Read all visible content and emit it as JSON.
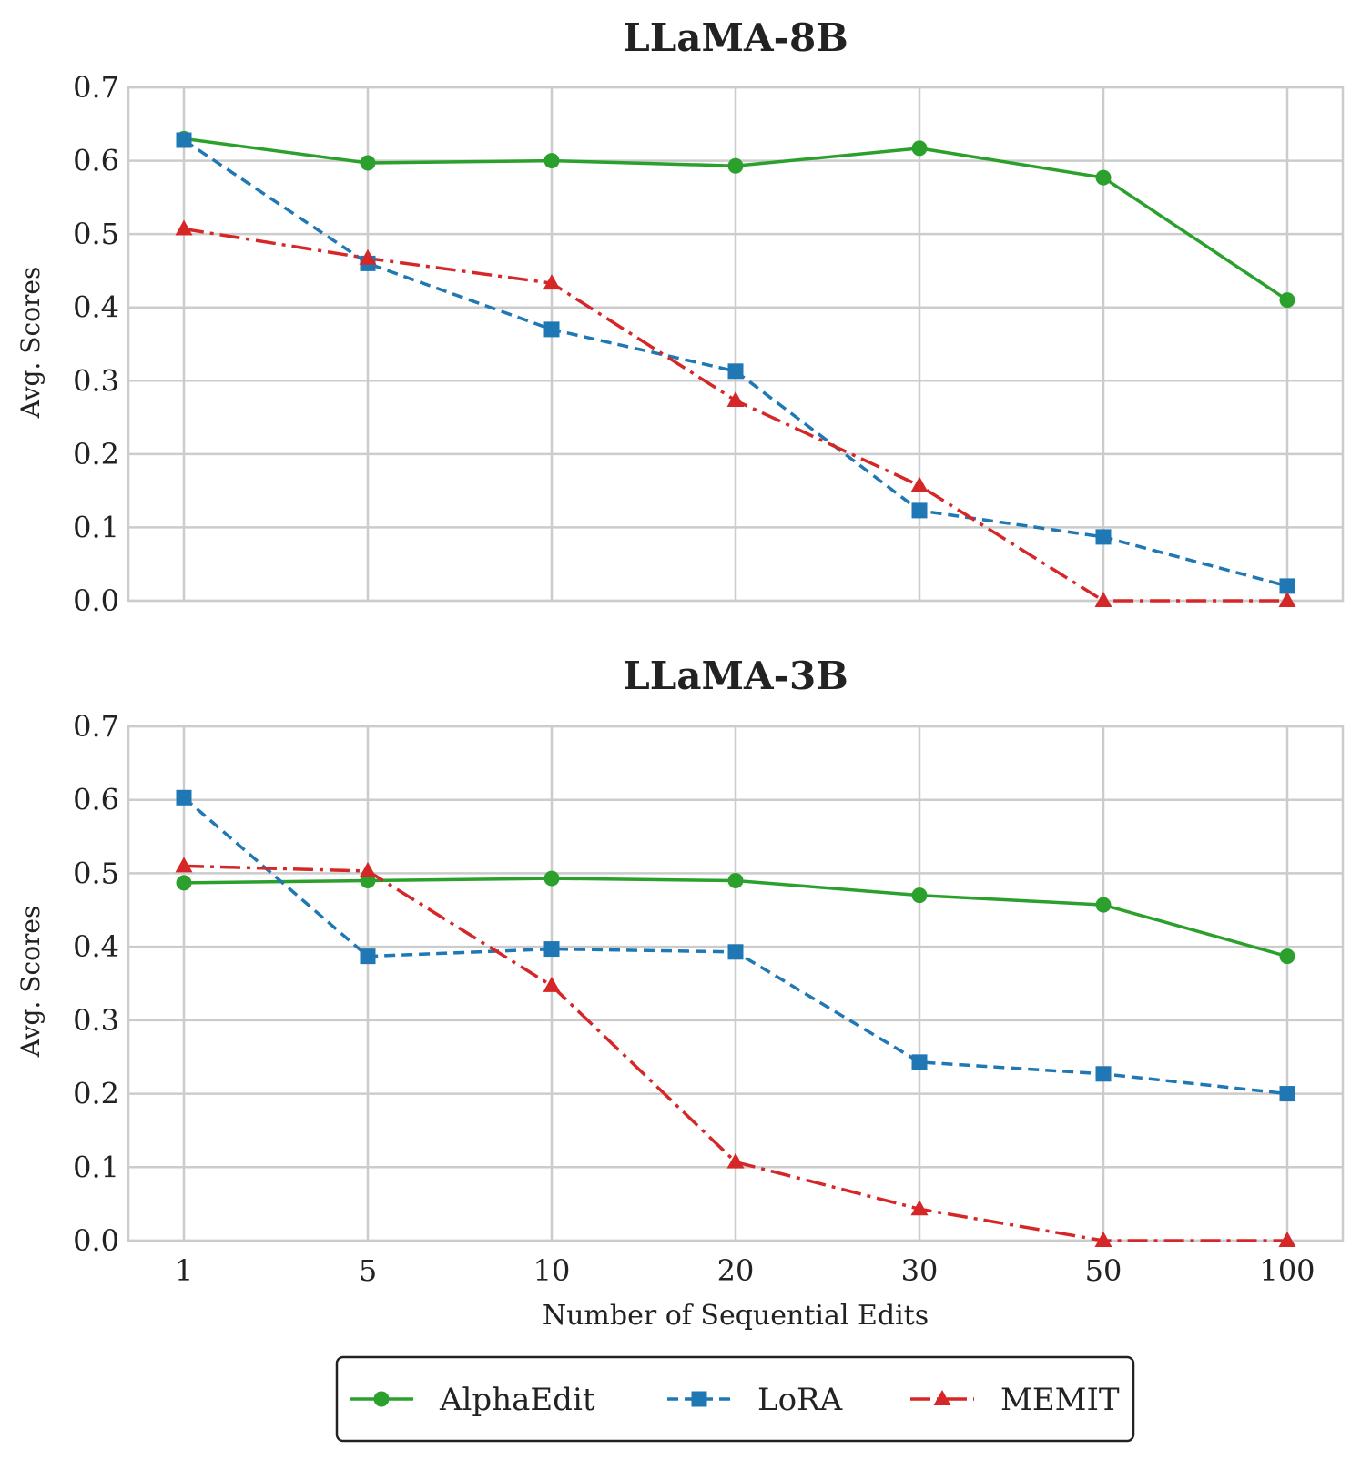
{
  "chart_data": [
    {
      "type": "line",
      "title": "LLaMA-8B",
      "xlabel": "",
      "ylabel": "Avg. Scores",
      "categories": [
        "1",
        "5",
        "10",
        "20",
        "30",
        "50",
        "100"
      ],
      "ylim": [
        0,
        0.7
      ],
      "yticks": [
        "0.0",
        "0.1",
        "0.2",
        "0.3",
        "0.4",
        "0.5",
        "0.6",
        "0.7"
      ],
      "grid": true,
      "series": [
        {
          "name": "AlphaEdit",
          "values": [
            0.63,
            0.597,
            0.6,
            0.593,
            0.617,
            0.577,
            0.41
          ]
        },
        {
          "name": "LoRA",
          "values": [
            0.628,
            0.46,
            0.37,
            0.313,
            0.123,
            0.087,
            0.02
          ]
        },
        {
          "name": "MEMIT",
          "values": [
            0.507,
            0.467,
            0.433,
            0.273,
            0.157,
            0.0,
            0.0
          ]
        }
      ]
    },
    {
      "type": "line",
      "title": "LLaMA-3B",
      "xlabel": "Number of Sequential Edits",
      "ylabel": "Avg. Scores",
      "categories": [
        "1",
        "5",
        "10",
        "20",
        "30",
        "50",
        "100"
      ],
      "ylim": [
        0,
        0.7
      ],
      "yticks": [
        "0.0",
        "0.1",
        "0.2",
        "0.3",
        "0.4",
        "0.5",
        "0.6",
        "0.7"
      ],
      "grid": true,
      "series": [
        {
          "name": "AlphaEdit",
          "values": [
            0.487,
            0.49,
            0.493,
            0.49,
            0.47,
            0.457,
            0.387
          ]
        },
        {
          "name": "LoRA",
          "values": [
            0.603,
            0.387,
            0.397,
            0.393,
            0.243,
            0.227,
            0.2
          ]
        },
        {
          "name": "MEMIT",
          "values": [
            0.51,
            0.503,
            0.347,
            0.107,
            0.043,
            0.0,
            0.0
          ]
        }
      ]
    }
  ],
  "legend": {
    "placement": "bottom-center",
    "entries": [
      {
        "label": "AlphaEdit",
        "color": "#2ca02c",
        "marker": "circle",
        "line": "solid"
      },
      {
        "label": "LoRA",
        "color": "#1f77b4",
        "marker": "square",
        "line": "dashed"
      },
      {
        "label": "MEMIT",
        "color": "#d62728",
        "marker": "triangle",
        "line": "dashdot"
      }
    ]
  },
  "series_styles": {
    "AlphaEdit": {
      "color": "#2ca02c",
      "marker": "circle",
      "dash": ""
    },
    "LoRA": {
      "color": "#1f77b4",
      "marker": "square",
      "dash": "12 7"
    },
    "MEMIT": {
      "color": "#d62728",
      "marker": "triangle",
      "dash": "22 7 4 7"
    }
  }
}
